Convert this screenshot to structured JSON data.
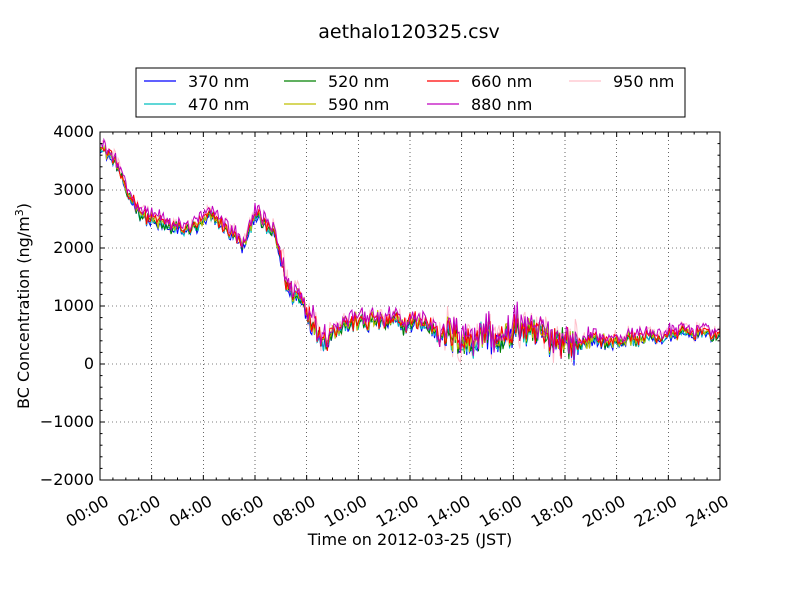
{
  "chart_data": {
    "type": "line",
    "title": "aethalo120325.csv",
    "xlabel": "Time on 2012-03-25 (JST)",
    "ylabel": "BC Concentration (ng/m",
    "ylabel_sup": "3",
    "ylabel_suffix": ")",
    "xlim": [
      0,
      24
    ],
    "ylim": [
      -2000,
      4000
    ],
    "grid": true,
    "legend_position": "top",
    "x_tick_values": [
      0,
      2,
      4,
      6,
      8,
      10,
      12,
      14,
      16,
      18,
      20,
      22,
      24
    ],
    "x_tick_labels": [
      "00:00",
      "02:00",
      "04:00",
      "06:00",
      "08:00",
      "10:00",
      "12:00",
      "14:00",
      "16:00",
      "18:00",
      "20:00",
      "22:00",
      "24:00"
    ],
    "y_tick_values": [
      -2000,
      -1000,
      0,
      1000,
      2000,
      3000,
      4000
    ],
    "y_tick_labels": [
      "−2000",
      "−1000",
      "0",
      "1000",
      "2000",
      "3000",
      "4000"
    ],
    "base_profile": {
      "x": [
        0,
        0.25,
        0.5,
        0.75,
        1,
        1.25,
        1.5,
        1.75,
        2,
        2.25,
        2.5,
        2.75,
        3,
        3.25,
        3.5,
        3.75,
        4,
        4.25,
        4.5,
        4.75,
        5,
        5.25,
        5.5,
        5.75,
        6,
        6.25,
        6.5,
        6.75,
        7,
        7.25,
        7.5,
        7.75,
        8,
        8.25,
        8.5,
        8.75,
        9,
        9.25,
        9.5,
        9.75,
        10,
        10.25,
        10.5,
        10.75,
        11,
        11.25,
        11.5,
        11.75,
        12,
        12.25,
        12.5,
        12.75,
        13,
        13.25,
        13.5,
        13.75,
        14,
        14.25,
        14.5,
        14.75,
        15,
        15.25,
        15.5,
        15.75,
        16,
        16.25,
        16.5,
        16.75,
        17,
        17.25,
        17.5,
        17.75,
        18,
        18.25,
        18.5,
        18.75,
        19,
        19.25,
        19.5,
        19.75,
        20,
        20.25,
        20.5,
        20.75,
        21,
        21.25,
        21.5,
        21.75,
        22,
        22.25,
        22.5,
        22.75,
        23,
        23.25,
        23.5,
        23.75,
        24
      ],
      "y": [
        3700,
        3600,
        3500,
        3300,
        2900,
        2800,
        2600,
        2500,
        2450,
        2400,
        2350,
        2300,
        2300,
        2250,
        2300,
        2350,
        2400,
        2500,
        2450,
        2350,
        2250,
        2150,
        2000,
        2200,
        2600,
        2400,
        2300,
        2200,
        1800,
        1300,
        1150,
        1100,
        900,
        650,
        450,
        350,
        500,
        600,
        650,
        650,
        700,
        650,
        700,
        700,
        650,
        700,
        700,
        600,
        650,
        700,
        650,
        600,
        550,
        500,
        450,
        400,
        350,
        300,
        400,
        450,
        500,
        400,
        300,
        450,
        550,
        600,
        500,
        450,
        500,
        450,
        400,
        350,
        400,
        300,
        250,
        350,
        350,
        400,
        350,
        300,
        350,
        350,
        400,
        350,
        400,
        450,
        400,
        400,
        450,
        450,
        500,
        500,
        450,
        550,
        450,
        450,
        450
      ]
    },
    "series": [
      {
        "name": "370 nm",
        "color": "#0000ff",
        "offset": 0,
        "noise": 1.0
      },
      {
        "name": "470 nm",
        "color": "#00bfbf",
        "offset": 20,
        "noise": 1.05
      },
      {
        "name": "520 nm",
        "color": "#008000",
        "offset": 40,
        "noise": 1.1
      },
      {
        "name": "590 nm",
        "color": "#bfbf00",
        "offset": 50,
        "noise": 1.2
      },
      {
        "name": "660 nm",
        "color": "#ff0000",
        "offset": 70,
        "noise": 1.3
      },
      {
        "name": "880 nm",
        "color": "#bf00bf",
        "offset": 130,
        "noise": 1.6
      },
      {
        "name": "950 nm",
        "color": "#ffc0cb",
        "offset": 90,
        "noise": 2.3
      }
    ]
  }
}
